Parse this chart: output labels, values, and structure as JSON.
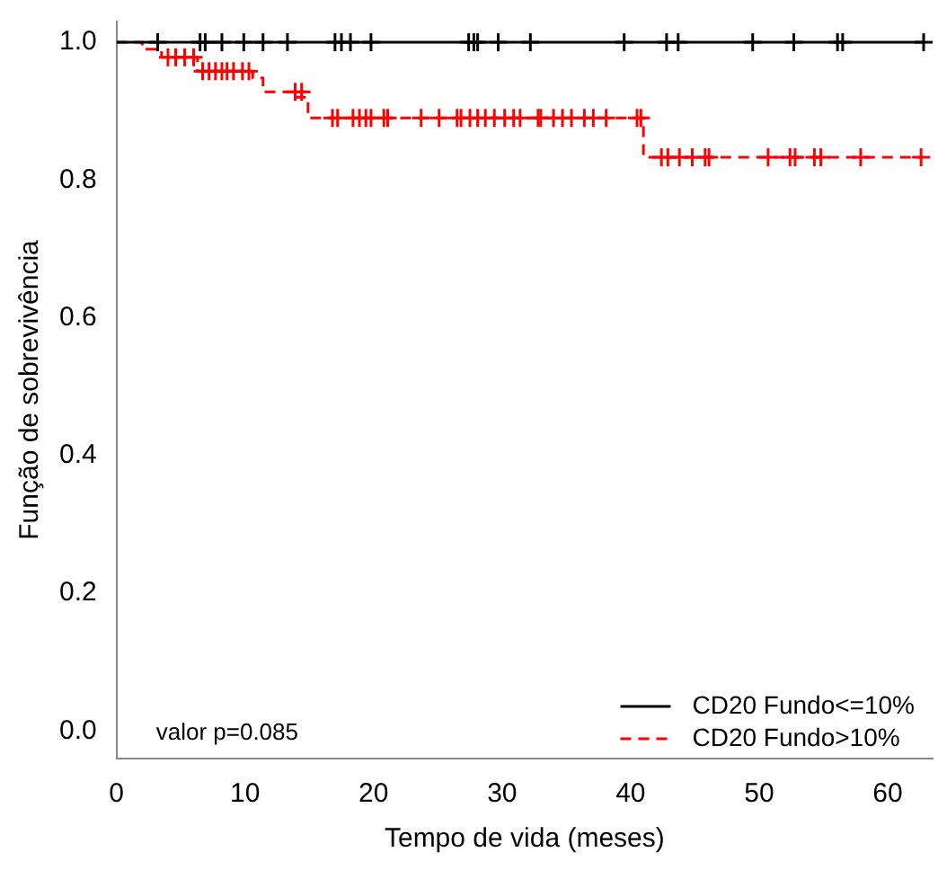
{
  "chart_data": {
    "type": "step",
    "xlabel": "Tempo de vida (meses)",
    "ylabel": "Função de sobrevivência",
    "xlim": [
      0,
      63.5
    ],
    "xticks": [
      0,
      10,
      20,
      30,
      40,
      50,
      60
    ],
    "ylim": [
      -0.04,
      1.03
    ],
    "yticks": [
      {
        "value": 0,
        "label": "0.0"
      },
      0.2,
      0.4,
      0.6,
      0.8,
      {
        "value": 1,
        "label": "1.0"
      }
    ],
    "grid": false,
    "legend": "bottom right",
    "annotations": [
      "valor p=0.085"
    ],
    "series": [
      {
        "name": "CD20 Fundo<=10%",
        "color": "#000000",
        "line_style": "solid",
        "marker": "none",
        "x": [
          0,
          62.8
        ],
        "values": [
          1,
          1
        ]
      },
      {
        "name": "CD20 Fundo>10%",
        "color": "#ff0000",
        "line_style": "dashed",
        "marker": "none",
        "x": [
          0,
          2,
          3.5,
          6.3,
          10.6,
          11.4,
          13.7,
          14.9,
          41,
          62.6
        ],
        "values": [
          1,
          0.99,
          0.978,
          0.958,
          0.948,
          0.928,
          0.92,
          0.89,
          0.833,
          0.833
        ]
      },
      {
        "type": "scatter",
        "color": "#000000",
        "marker": "cross",
        "x": [
          3.2,
          6.5,
          6.9,
          8.2,
          9.9,
          11.4,
          13.3,
          17.0,
          17.5,
          18.2,
          19.8,
          27.4,
          27.8,
          28.1,
          29.7,
          32.2,
          39.5,
          42.8,
          43.7,
          49.5,
          52.7,
          56.1,
          56.5,
          62.8
        ],
        "values": [
          1,
          1,
          1,
          1,
          1,
          1,
          1,
          1,
          1,
          1,
          1,
          1,
          1,
          1,
          1,
          1,
          1,
          1,
          1,
          1,
          1,
          1,
          1,
          1
        ]
      },
      {
        "type": "scatter",
        "color": "#ff0000",
        "marker": "cross",
        "x": [
          4.0,
          4.6,
          5.3,
          6.0,
          6.7,
          7.2,
          7.7,
          8.2,
          8.6,
          9.1,
          9.8,
          10.3,
          13.9,
          14.4,
          16.8,
          17.2,
          18.4,
          18.9,
          19.4,
          19.8,
          20.8,
          21.1,
          23.7,
          25.1,
          26.5,
          26.8,
          27.5,
          28.1,
          28.7,
          29.4,
          30.2,
          30.9,
          31.4,
          32.8,
          33.0,
          34.0,
          34.7,
          35.4,
          36.4,
          37.1,
          38.1,
          40.5,
          40.8,
          42.4,
          42.9,
          43.8,
          44.8,
          45.8,
          46.1,
          50.7,
          52.4,
          52.8,
          54.3,
          54.8,
          57.9,
          62.6
        ],
        "values": [
          0.978,
          0.978,
          0.978,
          0.978,
          0.958,
          0.958,
          0.958,
          0.958,
          0.958,
          0.958,
          0.958,
          0.958,
          0.928,
          0.928,
          0.89,
          0.89,
          0.89,
          0.89,
          0.89,
          0.89,
          0.89,
          0.89,
          0.89,
          0.89,
          0.89,
          0.89,
          0.89,
          0.89,
          0.89,
          0.89,
          0.89,
          0.89,
          0.89,
          0.89,
          0.89,
          0.89,
          0.89,
          0.89,
          0.89,
          0.89,
          0.89,
          0.89,
          0.89,
          0.833,
          0.833,
          0.833,
          0.833,
          0.833,
          0.833,
          0.833,
          0.833,
          0.833,
          0.833,
          0.833,
          0.833,
          0.833
        ]
      }
    ]
  }
}
